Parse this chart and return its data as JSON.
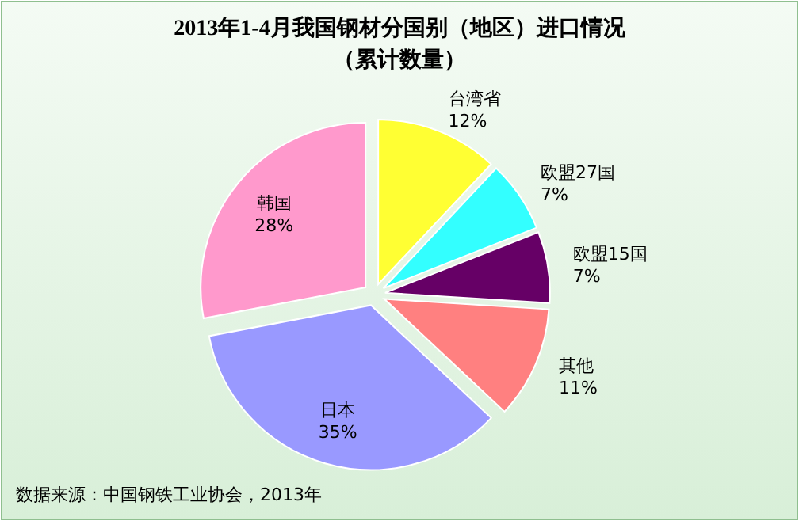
{
  "chart_data": {
    "type": "pie",
    "title": "2013年1-4月我国钢材分国别（地区）进口情况",
    "subtitle": "（累计数量）",
    "categories": [
      "台湾省",
      "欧盟27国",
      "欧盟15国",
      "其他",
      "日本",
      "韩国"
    ],
    "values": [
      12,
      7,
      7,
      11,
      35,
      28
    ],
    "value_labels": [
      "12%",
      "7%",
      "7%",
      "11%",
      "35%",
      "28%"
    ],
    "colors": [
      "#ffff33",
      "#33ffff",
      "#660066",
      "#ff8080",
      "#9999ff",
      "#ff99cc"
    ],
    "annotations": [
      "数据来源：中国钢铁工业协会，2013年"
    ]
  }
}
